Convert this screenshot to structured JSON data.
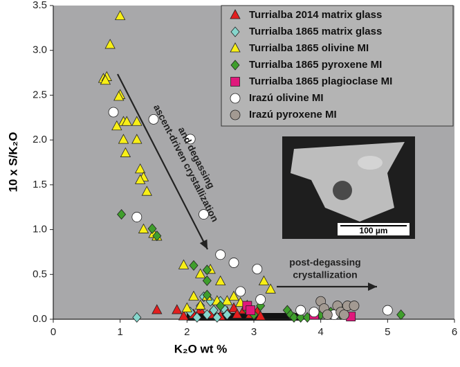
{
  "chart_data": {
    "type": "scatter",
    "xlabel": "K₂O wt %",
    "ylabel": "10 x S/K₂O",
    "xlim": [
      0,
      6
    ],
    "ylim": [
      0,
      3.5
    ],
    "xticks": [
      0,
      1,
      2,
      3,
      4,
      5,
      6
    ],
    "yticks": [
      {
        "value": 0,
        "label": "0.0"
      },
      0.5,
      {
        "value": 1,
        "label": "1.0"
      },
      1.5,
      {
        "value": 2,
        "label": "2.0"
      },
      2.5,
      {
        "value": 3,
        "label": "3.0"
      },
      3.5
    ],
    "legend": "upper right",
    "annotations": {
      "ascent": [
        "ascent-driven crystallization",
        "and degassing"
      ],
      "post": [
        "post-degassing",
        "crystallization"
      ],
      "scale_bar": "100 µm"
    },
    "series": [
      {
        "name": "Turrialba 2014 matrix glass",
        "color": "#e21e1e",
        "marker": "triangle",
        "x": [
          1.55,
          1.85,
          1.95,
          2.1,
          2.2,
          2.35,
          2.5,
          2.6,
          2.7,
          2.75,
          2.85,
          2.95,
          3.05,
          3.1
        ],
        "values": [
          0.1,
          0.1,
          0.03,
          0.05,
          0.1,
          0.05,
          0.03,
          0.08,
          0.12,
          0.05,
          0.1,
          0.05,
          0.08,
          0.03
        ]
      },
      {
        "name": "Turrialba 1865 matrix glass",
        "color": "#86d6cc",
        "marker": "diamond",
        "x": [
          1.25,
          2.05,
          2.15,
          2.2,
          2.25,
          2.3,
          2.35,
          2.4,
          2.45,
          2.5,
          2.55,
          2.6
        ],
        "values": [
          0.02,
          0.08,
          0.02,
          0.15,
          0.25,
          0.05,
          0.2,
          0.1,
          0.02,
          0.2,
          0.12,
          0.05
        ]
      },
      {
        "name": "Turrialba 1865 olivine MI",
        "color": "#f8ef16",
        "marker": "triangle",
        "x": [
          1.0,
          0.85,
          0.75,
          0.8,
          0.78,
          1.0,
          0.98,
          1.05,
          1.1,
          0.95,
          1.05,
          1.25,
          1.25,
          1.08,
          1.3,
          1.35,
          1.3,
          1.4,
          1.35,
          1.5,
          1.55,
          1.95,
          2.2,
          2.5,
          2.35,
          2.1,
          2.3,
          2.45,
          2.6,
          2.7,
          2.8,
          3.15,
          3.25,
          2.2,
          2.9,
          2.0
        ],
        "values": [
          3.38,
          3.06,
          2.68,
          2.7,
          2.66,
          2.5,
          2.48,
          2.2,
          2.2,
          2.15,
          2.0,
          2.2,
          2.0,
          1.85,
          1.67,
          1.58,
          1.55,
          1.42,
          1.0,
          0.95,
          0.92,
          0.6,
          0.5,
          0.42,
          0.55,
          0.25,
          0.25,
          0.2,
          0.2,
          0.25,
          0.18,
          0.42,
          0.33,
          0.15,
          0.15,
          0.12
        ]
      },
      {
        "name": "Turrialba 1865 pyroxene MI",
        "color": "#3f9e2c",
        "marker": "diamond",
        "x": [
          1.02,
          1.48,
          1.55,
          2.1,
          2.3,
          2.3,
          2.3,
          2.5,
          2.9,
          3.0,
          3.1,
          3.5,
          3.55,
          3.6,
          3.7,
          3.8,
          4.0,
          4.15,
          4.25,
          4.3,
          4.35,
          5.2
        ],
        "values": [
          1.17,
          1.01,
          0.93,
          0.6,
          0.55,
          0.43,
          0.27,
          0.15,
          0.1,
          0.05,
          0.15,
          0.1,
          0.05,
          0.02,
          0.02,
          0.02,
          0.05,
          0.08,
          0.1,
          0.05,
          0.12,
          0.05
        ]
      },
      {
        "name": "Turrialba 1865 plagioclase MI",
        "color": "#e0187c",
        "marker": "square",
        "x": [
          2.9,
          2.95,
          3.9,
          4.45
        ],
        "values": [
          0.15,
          0.1,
          0.05,
          0.03
        ]
      },
      {
        "name": "Irazú olivine MI",
        "color": "#ffffff",
        "marker": "circle",
        "x": [
          0.9,
          1.5,
          2.05,
          1.25,
          2.25,
          2.5,
          2.7,
          3.05,
          3.1,
          2.8,
          3.7,
          3.9,
          4.2,
          5.0
        ],
        "values": [
          2.31,
          2.23,
          2.01,
          1.14,
          1.17,
          0.72,
          0.63,
          0.56,
          0.22,
          0.31,
          0.1,
          0.08,
          0.05,
          0.1
        ]
      },
      {
        "name": "Irazú pyroxene MI",
        "color": "#a39a92",
        "marker": "circle",
        "x": [
          4.0,
          4.05,
          4.1,
          4.25,
          4.3,
          4.35,
          4.4,
          4.5
        ],
        "values": [
          0.2,
          0.12,
          0.05,
          0.15,
          0.08,
          0.05,
          0.15,
          0.15
        ]
      }
    ]
  }
}
